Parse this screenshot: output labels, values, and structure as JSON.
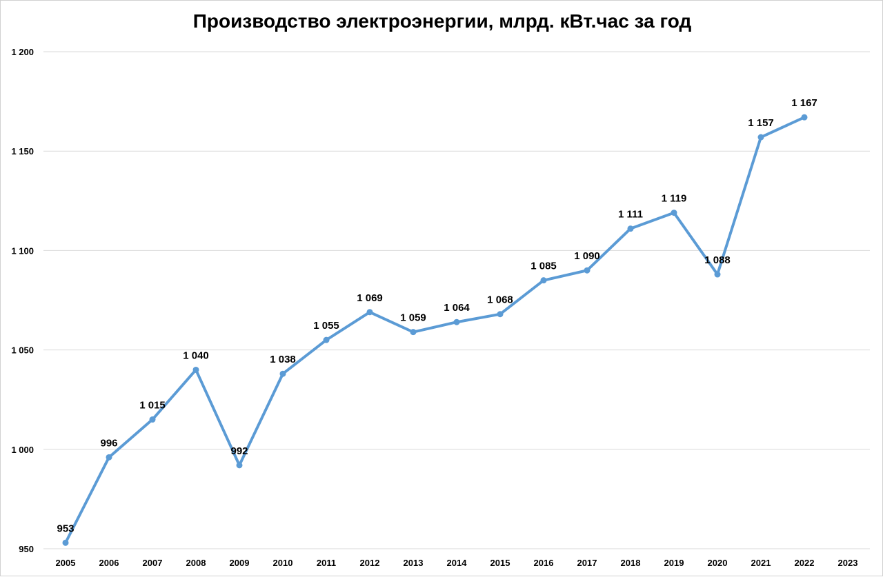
{
  "chart_data": {
    "type": "line",
    "title": "Производство электроэнергии, млрд. кВт.час за год",
    "xlabel": "",
    "ylabel": "",
    "categories": [
      "2005",
      "2006",
      "2007",
      "2008",
      "2009",
      "2010",
      "2011",
      "2012",
      "2013",
      "2014",
      "2015",
      "2016",
      "2017",
      "2018",
      "2019",
      "2020",
      "2021",
      "2022",
      "2023"
    ],
    "series": [
      {
        "values": [
          953,
          996,
          1015,
          1040,
          992,
          1038,
          1055,
          1069,
          1059,
          1064,
          1068,
          1085,
          1090,
          1111,
          1119,
          1088,
          1157,
          1167,
          null
        ],
        "labels": [
          "953",
          "996",
          "1 015",
          "1 040",
          "992",
          "1 038",
          "1 055",
          "1 069",
          "1 059",
          "1 064",
          "1 068",
          "1 085",
          "1 090",
          "1 111",
          "1 119",
          "1 088",
          "1 157",
          "1 167",
          ""
        ],
        "color": "#5b9bd5"
      }
    ],
    "ylim": [
      950,
      1200
    ],
    "yticks": [
      950,
      1000,
      1050,
      1100,
      1150,
      1200
    ],
    "ytick_labels": [
      "950",
      "1 000",
      "1 050",
      "1 100",
      "1 150",
      "1 200"
    ],
    "grid": true,
    "gridline_color": "#d9d9d9",
    "legend": "none"
  }
}
